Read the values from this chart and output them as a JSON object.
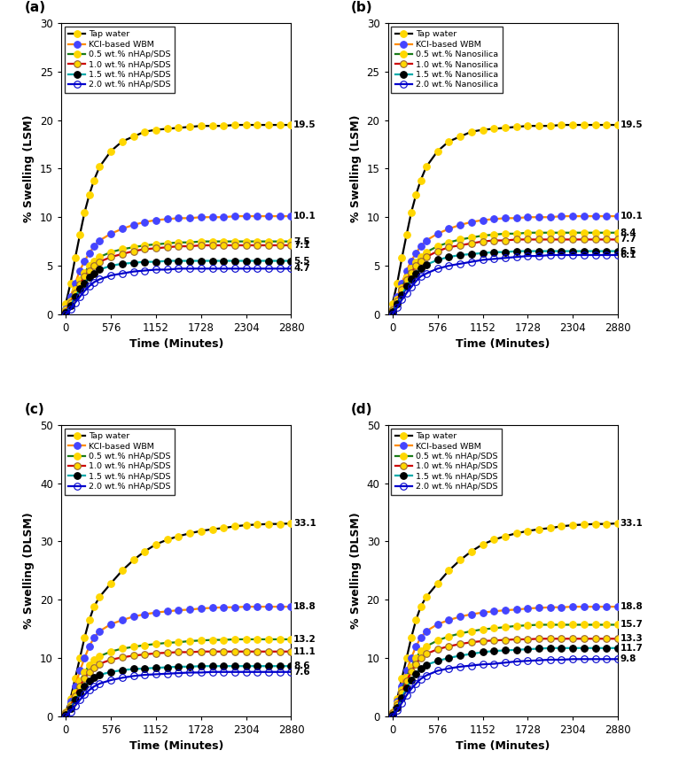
{
  "time_points": [
    0,
    60,
    120,
    180,
    240,
    300,
    360,
    432,
    576,
    720,
    864,
    1008,
    1152,
    1296,
    1440,
    1584,
    1728,
    1872,
    2016,
    2160,
    2304,
    2448,
    2592,
    2736,
    2880
  ],
  "subplot_a": {
    "title_label": "(a)",
    "ylabel": "% Swelling (LSM)",
    "xlabel": "Time (Minutes)",
    "ylim": [
      0,
      30
    ],
    "yticks": [
      0,
      5,
      10,
      15,
      20,
      25,
      30
    ],
    "xticks": [
      0,
      576,
      1152,
      1728,
      2304,
      2880
    ],
    "final_values": {
      "tap": 19.5,
      "kcl": 10.1,
      "c05": 7.5,
      "c10": 7.1,
      "c15": 5.5,
      "c20": 4.7
    },
    "series": {
      "tap": [
        1.1,
        3.2,
        5.8,
        8.2,
        10.5,
        12.3,
        13.8,
        15.2,
        16.8,
        17.8,
        18.3,
        18.8,
        19.0,
        19.1,
        19.2,
        19.3,
        19.4,
        19.4,
        19.4,
        19.5,
        19.5,
        19.5,
        19.5,
        19.5,
        19.5
      ],
      "kcl": [
        0.5,
        1.8,
        3.2,
        4.5,
        5.5,
        6.3,
        7.0,
        7.6,
        8.3,
        8.8,
        9.2,
        9.5,
        9.7,
        9.8,
        9.9,
        9.9,
        10.0,
        10.0,
        10.0,
        10.1,
        10.1,
        10.1,
        10.1,
        10.1,
        10.1
      ],
      "c05": [
        0.4,
        1.4,
        2.5,
        3.5,
        4.3,
        5.0,
        5.5,
        5.9,
        6.4,
        6.7,
        6.9,
        7.1,
        7.2,
        7.3,
        7.4,
        7.4,
        7.5,
        7.5,
        7.5,
        7.5,
        7.5,
        7.5,
        7.5,
        7.5,
        7.5
      ],
      "c10": [
        0.3,
        1.2,
        2.2,
        3.1,
        3.9,
        4.5,
        5.0,
        5.4,
        5.9,
        6.2,
        6.5,
        6.7,
        6.8,
        6.9,
        7.0,
        7.0,
        7.1,
        7.1,
        7.1,
        7.1,
        7.1,
        7.1,
        7.1,
        7.1,
        7.1
      ],
      "c15": [
        0.2,
        0.9,
        1.8,
        2.6,
        3.2,
        3.8,
        4.2,
        4.6,
        5.0,
        5.2,
        5.3,
        5.4,
        5.4,
        5.5,
        5.5,
        5.5,
        5.5,
        5.5,
        5.5,
        5.5,
        5.5,
        5.5,
        5.5,
        5.5,
        5.5
      ],
      "c20": [
        0.0,
        0.5,
        1.2,
        1.8,
        2.4,
        2.9,
        3.3,
        3.6,
        4.0,
        4.2,
        4.4,
        4.5,
        4.6,
        4.6,
        4.7,
        4.7,
        4.7,
        4.7,
        4.7,
        4.7,
        4.7,
        4.7,
        4.7,
        4.7,
        4.7
      ]
    }
  },
  "subplot_b": {
    "title_label": "(b)",
    "ylabel": "% Swelling (LSM)",
    "xlabel": "Time (Minutes)",
    "ylim": [
      0,
      30
    ],
    "yticks": [
      0,
      5,
      10,
      15,
      20,
      25,
      30
    ],
    "xticks": [
      0,
      576,
      1152,
      1728,
      2304,
      2880
    ],
    "final_values": {
      "tap": 19.5,
      "kcl": 10.1,
      "c05": 8.4,
      "c10": 7.7,
      "c15": 6.5,
      "c20": 6.1
    },
    "series": {
      "tap": [
        1.1,
        3.2,
        5.8,
        8.2,
        10.5,
        12.3,
        13.8,
        15.2,
        16.8,
        17.8,
        18.3,
        18.8,
        19.0,
        19.1,
        19.2,
        19.3,
        19.4,
        19.4,
        19.4,
        19.5,
        19.5,
        19.5,
        19.5,
        19.5,
        19.5
      ],
      "kcl": [
        0.5,
        1.8,
        3.2,
        4.5,
        5.5,
        6.3,
        7.0,
        7.6,
        8.3,
        8.8,
        9.2,
        9.5,
        9.7,
        9.8,
        9.9,
        9.9,
        10.0,
        10.0,
        10.0,
        10.1,
        10.1,
        10.1,
        10.1,
        10.1,
        10.1
      ],
      "c05": [
        0.5,
        1.5,
        2.7,
        3.8,
        4.7,
        5.4,
        5.9,
        6.4,
        7.0,
        7.4,
        7.7,
        7.9,
        8.1,
        8.2,
        8.3,
        8.3,
        8.4,
        8.4,
        8.4,
        8.4,
        8.4,
        8.4,
        8.4,
        8.4,
        8.4
      ],
      "c10": [
        0.4,
        1.4,
        2.5,
        3.5,
        4.3,
        5.0,
        5.5,
        5.9,
        6.5,
        6.9,
        7.1,
        7.3,
        7.5,
        7.6,
        7.6,
        7.7,
        7.7,
        7.7,
        7.7,
        7.7,
        7.7,
        7.7,
        7.7,
        7.7,
        7.7
      ],
      "c15": [
        0.3,
        1.1,
        2.0,
        2.9,
        3.6,
        4.2,
        4.7,
        5.1,
        5.6,
        5.9,
        6.1,
        6.2,
        6.3,
        6.4,
        6.4,
        6.5,
        6.5,
        6.5,
        6.5,
        6.5,
        6.5,
        6.5,
        6.5,
        6.5,
        6.5
      ],
      "c20": [
        0.0,
        0.7,
        1.5,
        2.2,
        2.8,
        3.4,
        3.9,
        4.2,
        4.7,
        5.0,
        5.2,
        5.4,
        5.6,
        5.7,
        5.8,
        5.9,
        6.0,
        6.0,
        6.1,
        6.1,
        6.1,
        6.1,
        6.1,
        6.1,
        6.1
      ]
    }
  },
  "subplot_c": {
    "title_label": "(c)",
    "ylabel": "% Swelling (DLSM)",
    "xlabel": "Time (Minutes)",
    "ylim": [
      0,
      50
    ],
    "yticks": [
      0,
      10,
      20,
      30,
      40,
      50
    ],
    "xticks": [
      0,
      576,
      1152,
      1728,
      2304,
      2880
    ],
    "final_values": {
      "tap": 33.1,
      "kcl": 18.8,
      "c05": 13.2,
      "c10": 11.1,
      "c15": 8.6,
      "c20": 7.6
    },
    "series": {
      "tap": [
        0.8,
        3.0,
        6.5,
        10.0,
        13.5,
        16.5,
        18.8,
        20.5,
        22.8,
        25.0,
        26.8,
        28.3,
        29.5,
        30.3,
        30.9,
        31.4,
        31.8,
        32.1,
        32.3,
        32.6,
        32.8,
        32.9,
        33.0,
        33.0,
        33.1
      ],
      "kcl": [
        0.5,
        2.5,
        5.2,
        7.8,
        10.0,
        12.0,
        13.5,
        14.6,
        15.8,
        16.5,
        17.1,
        17.5,
        17.8,
        18.0,
        18.2,
        18.3,
        18.5,
        18.6,
        18.7,
        18.7,
        18.8,
        18.8,
        18.8,
        18.8,
        18.8
      ],
      "c05": [
        0.5,
        2.0,
        4.0,
        6.0,
        7.5,
        8.8,
        9.7,
        10.3,
        11.1,
        11.6,
        11.9,
        12.2,
        12.4,
        12.6,
        12.7,
        12.9,
        13.0,
        13.1,
        13.1,
        13.2,
        13.2,
        13.2,
        13.2,
        13.2,
        13.2
      ],
      "c10": [
        0.5,
        1.7,
        3.5,
        5.2,
        6.5,
        7.6,
        8.4,
        9.0,
        9.7,
        10.1,
        10.4,
        10.6,
        10.8,
        10.9,
        11.0,
        11.0,
        11.1,
        11.1,
        11.1,
        11.1,
        11.1,
        11.1,
        11.1,
        11.1,
        11.1
      ],
      "c15": [
        0.3,
        1.3,
        2.8,
        4.1,
        5.2,
        6.0,
        6.7,
        7.1,
        7.6,
        7.9,
        8.1,
        8.2,
        8.3,
        8.4,
        8.5,
        8.5,
        8.6,
        8.6,
        8.6,
        8.6,
        8.6,
        8.6,
        8.6,
        8.6,
        8.6
      ],
      "c20": [
        0.0,
        0.8,
        1.8,
        2.8,
        3.7,
        4.5,
        5.1,
        5.6,
        6.2,
        6.6,
        6.9,
        7.1,
        7.2,
        7.3,
        7.4,
        7.5,
        7.5,
        7.6,
        7.6,
        7.6,
        7.6,
        7.6,
        7.6,
        7.6,
        7.6
      ]
    }
  },
  "subplot_d": {
    "title_label": "(d)",
    "ylabel": "% Swelling (DLSM)",
    "xlabel": "Time (Minutes)",
    "ylim": [
      0,
      50
    ],
    "yticks": [
      0,
      10,
      20,
      30,
      40,
      50
    ],
    "xticks": [
      0,
      576,
      1152,
      1728,
      2304,
      2880
    ],
    "final_values": {
      "tap": 33.1,
      "kcl": 18.8,
      "c05": 15.7,
      "c10": 13.3,
      "c15": 11.7,
      "c20": 9.8
    },
    "series": {
      "tap": [
        0.8,
        3.0,
        6.5,
        10.0,
        13.5,
        16.5,
        18.8,
        20.5,
        22.8,
        25.0,
        26.8,
        28.3,
        29.5,
        30.3,
        30.9,
        31.4,
        31.8,
        32.1,
        32.3,
        32.6,
        32.8,
        32.9,
        33.0,
        33.0,
        33.1
      ],
      "kcl": [
        0.5,
        2.5,
        5.2,
        7.8,
        10.0,
        12.0,
        13.5,
        14.6,
        15.8,
        16.5,
        17.1,
        17.5,
        17.8,
        18.0,
        18.2,
        18.3,
        18.5,
        18.6,
        18.7,
        18.7,
        18.8,
        18.8,
        18.8,
        18.8,
        18.8
      ],
      "c05": [
        0.5,
        2.2,
        4.5,
        6.7,
        8.5,
        10.0,
        11.2,
        12.0,
        13.0,
        13.7,
        14.2,
        14.6,
        14.9,
        15.1,
        15.3,
        15.5,
        15.6,
        15.7,
        15.7,
        15.7,
        15.7,
        15.7,
        15.7,
        15.7,
        15.7
      ],
      "c10": [
        0.5,
        1.9,
        4.0,
        6.0,
        7.7,
        9.0,
        10.0,
        10.7,
        11.5,
        12.0,
        12.4,
        12.7,
        12.9,
        13.0,
        13.1,
        13.2,
        13.2,
        13.3,
        13.3,
        13.3,
        13.3,
        13.3,
        13.3,
        13.3,
        13.3
      ],
      "c15": [
        0.3,
        1.5,
        3.2,
        4.8,
        6.2,
        7.3,
        8.2,
        8.8,
        9.5,
        10.0,
        10.4,
        10.7,
        11.0,
        11.2,
        11.3,
        11.4,
        11.5,
        11.6,
        11.7,
        11.7,
        11.7,
        11.7,
        11.7,
        11.7,
        11.7
      ],
      "c20": [
        0.0,
        1.0,
        2.3,
        3.6,
        4.7,
        5.6,
        6.4,
        7.0,
        7.8,
        8.2,
        8.5,
        8.7,
        8.9,
        9.0,
        9.2,
        9.4,
        9.5,
        9.6,
        9.7,
        9.7,
        9.8,
        9.8,
        9.8,
        9.8,
        9.8
      ]
    }
  },
  "line_colors": {
    "tap": "#000000",
    "kcl": "#FF8C00",
    "c05": "#1A7A1A",
    "c10": "#CC0000",
    "c15": "#00AAAA",
    "c20": "#0000CC"
  },
  "marker_face_colors": {
    "tap": "#FFD700",
    "kcl": "#4444FF",
    "c05": "#FFD700",
    "c10": "#FFD700",
    "c15": "#000000",
    "c20": "none"
  },
  "marker_edge_colors": {
    "tap": "#FFD700",
    "kcl": "#4444FF",
    "c05": "#FFD700",
    "c10": "#996633",
    "c15": "#000000",
    "c20": "#0000CC"
  },
  "legend_a": [
    "Tap water",
    "KCl-based WBM",
    "0.5 wt.% nHAp/SDS",
    "1.0 wt.% nHAp/SDS",
    "1.5 wt.% nHAp/SDS",
    "2.0 wt.% nHAp/SDS"
  ],
  "legend_b": [
    "Tap water",
    "KCl-based WBM",
    "0.5 wt.% Nanosilica",
    "1.0 wt.% Nanosilica",
    "1.5 wt.% Nanosilica",
    "2.0 wt.% Nanosilica"
  ],
  "legend_cd": [
    "Tap water",
    "KCl-based WBM",
    "0.5 wt.% nHAp/SDS",
    "1.0 wt.% nHAp/SDS",
    "1.5 wt.% nHAp/SDS",
    "2.0 wt.% nHAp/SDS"
  ]
}
